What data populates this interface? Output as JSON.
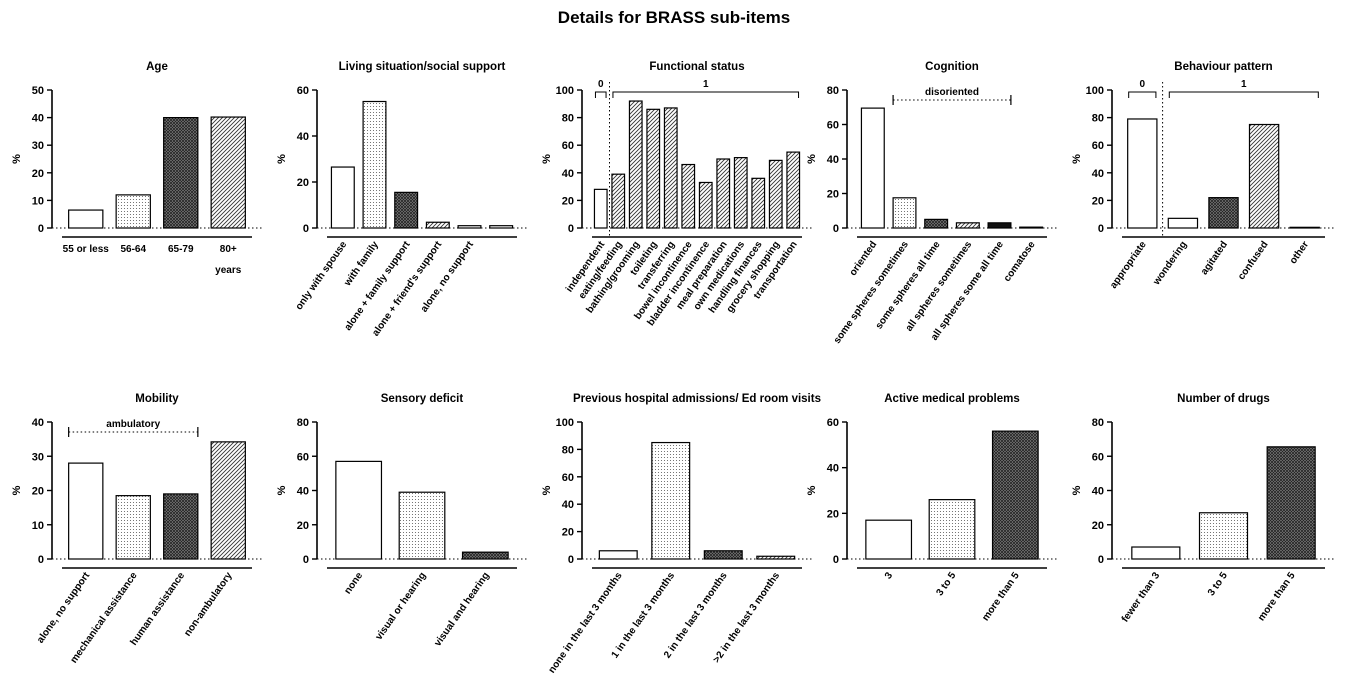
{
  "title": "Details for BRASS  sub-items",
  "chart_data": [
    {
      "type": "bar",
      "title": "Age",
      "categories": [
        "55 or less",
        "56-64",
        "65-79",
        "80+"
      ],
      "values": [
        6.5,
        12,
        40,
        40.2
      ],
      "ylabel": "%",
      "xlabel": "years",
      "ylim": [
        0,
        50
      ],
      "yticks": [
        0,
        10,
        20,
        30,
        40,
        50
      ],
      "patterns": [
        "white",
        "dots",
        "cross",
        "diag"
      ],
      "rotate_labels": false
    },
    {
      "type": "bar",
      "title": "Living situation/social support",
      "categories": [
        "only with spouse",
        "with family",
        "alone + family support",
        "alone + friend's support",
        "alone, no support",
        ""
      ],
      "values": [
        26.5,
        55,
        15.5,
        2.5,
        1,
        1
      ],
      "ylabel": "%",
      "ylim": [
        0,
        60
      ],
      "yticks": [
        0,
        20,
        40,
        60
      ],
      "patterns": [
        "white",
        "dots",
        "cross",
        "diag",
        "white",
        "white"
      ],
      "rotate_labels": true
    },
    {
      "type": "bar",
      "title": "Functional status",
      "categories": [
        "independent",
        "eating/feeding",
        "bathing/grooming",
        "toileting",
        "transferring",
        "bowel incontinence",
        "bladder incontinence",
        "meal preparation",
        "own medications",
        "handling finances",
        "grocery shopping",
        "transportation"
      ],
      "values": [
        28,
        39,
        92,
        86,
        87,
        46,
        33,
        50,
        51,
        36,
        49,
        55
      ],
      "ylabel": "%",
      "ylim": [
        0,
        100
      ],
      "yticks": [
        0,
        20,
        40,
        60,
        80,
        100
      ],
      "patterns": [
        "white",
        "diag",
        "diag",
        "diag",
        "diag",
        "diag",
        "diag",
        "diag",
        "diag",
        "diag",
        "diag",
        "diag"
      ],
      "rotate_labels": true,
      "brackets": [
        {
          "label": "0",
          "from": 0,
          "to": 0
        },
        {
          "label": "1",
          "from": 1,
          "to": 11
        }
      ],
      "divider_after": 0
    },
    {
      "type": "bar",
      "title": "Cognition",
      "categories": [
        "oriented",
        "some spheres sometimes",
        "some spheres all time",
        "all spheres sometimes",
        "all spheres some all time",
        "comatose"
      ],
      "values": [
        69.5,
        17.5,
        5,
        3,
        3,
        0.5
      ],
      "ylabel": "%",
      "ylim": [
        0,
        80
      ],
      "yticks": [
        0,
        20,
        40,
        60,
        80
      ],
      "patterns": [
        "white",
        "dots",
        "cross",
        "diag",
        "black",
        "white"
      ],
      "rotate_labels": true,
      "range_label": {
        "label": "disoriented",
        "from": 1,
        "to": 4
      }
    },
    {
      "type": "bar",
      "title": "Behaviour pattern",
      "categories": [
        "appropriate",
        "wondering",
        "agitated",
        "confused",
        "other"
      ],
      "values": [
        79,
        7,
        22,
        75,
        0.5
      ],
      "ylabel": "%",
      "ylim": [
        0,
        100
      ],
      "yticks": [
        0,
        20,
        40,
        60,
        80,
        100
      ],
      "patterns": [
        "white",
        "white",
        "cross",
        "diag",
        "white"
      ],
      "rotate_labels": true,
      "brackets": [
        {
          "label": "0",
          "from": 0,
          "to": 0
        },
        {
          "label": "1",
          "from": 1,
          "to": 4
        }
      ],
      "divider_after": 0,
      "gap_after_first": true
    },
    {
      "type": "bar",
      "title": "Mobility",
      "categories": [
        "alone, no support",
        "mechanical assistance",
        "human assistance",
        "non-ambulatory"
      ],
      "values": [
        28,
        18.5,
        19,
        34.2
      ],
      "ylabel": "%",
      "ylim": [
        0,
        40
      ],
      "yticks": [
        0,
        10,
        20,
        30,
        40
      ],
      "patterns": [
        "white",
        "dots",
        "cross",
        "diag"
      ],
      "rotate_labels": true,
      "range_label": {
        "label": "ambulatory",
        "from": 0,
        "to": 2
      }
    },
    {
      "type": "bar",
      "title": "Sensory deficit",
      "categories": [
        "none",
        "visual or hearing",
        "visual and hearing"
      ],
      "values": [
        57,
        39,
        4
      ],
      "ylabel": "%",
      "ylim": [
        0,
        80
      ],
      "yticks": [
        0,
        20,
        40,
        60,
        80
      ],
      "patterns": [
        "white",
        "dots",
        "cross"
      ],
      "rotate_labels": true
    },
    {
      "type": "bar",
      "title": "Previous hospital admissions/ Ed room visits",
      "categories": [
        "none in the last 3 months",
        "1 in the last 3 months",
        "2 in the last 3 months",
        ">2 in the last 3 months"
      ],
      "values": [
        6,
        85,
        6,
        2
      ],
      "ylabel": "%",
      "ylim": [
        0,
        100
      ],
      "yticks": [
        0,
        20,
        40,
        60,
        80,
        100
      ],
      "patterns": [
        "white",
        "dots",
        "cross",
        "diag"
      ],
      "rotate_labels": true
    },
    {
      "type": "bar",
      "title": "Active medical problems",
      "categories": [
        "3",
        "3 to 5",
        "more than 5"
      ],
      "values": [
        17,
        26,
        56
      ],
      "ylabel": "%",
      "ylim": [
        0,
        60
      ],
      "yticks": [
        0,
        20,
        40,
        60
      ],
      "patterns": [
        "white",
        "dots",
        "cross"
      ],
      "rotate_labels": true
    },
    {
      "type": "bar",
      "title": "Number of drugs",
      "categories": [
        "fewer than 3",
        "3 to 5",
        "more than 5"
      ],
      "values": [
        7,
        27,
        65.5
      ],
      "ylabel": "%",
      "ylim": [
        0,
        80
      ],
      "yticks": [
        0,
        20,
        40,
        60,
        80
      ],
      "patterns": [
        "white",
        "dots",
        "cross"
      ],
      "rotate_labels": true
    }
  ]
}
